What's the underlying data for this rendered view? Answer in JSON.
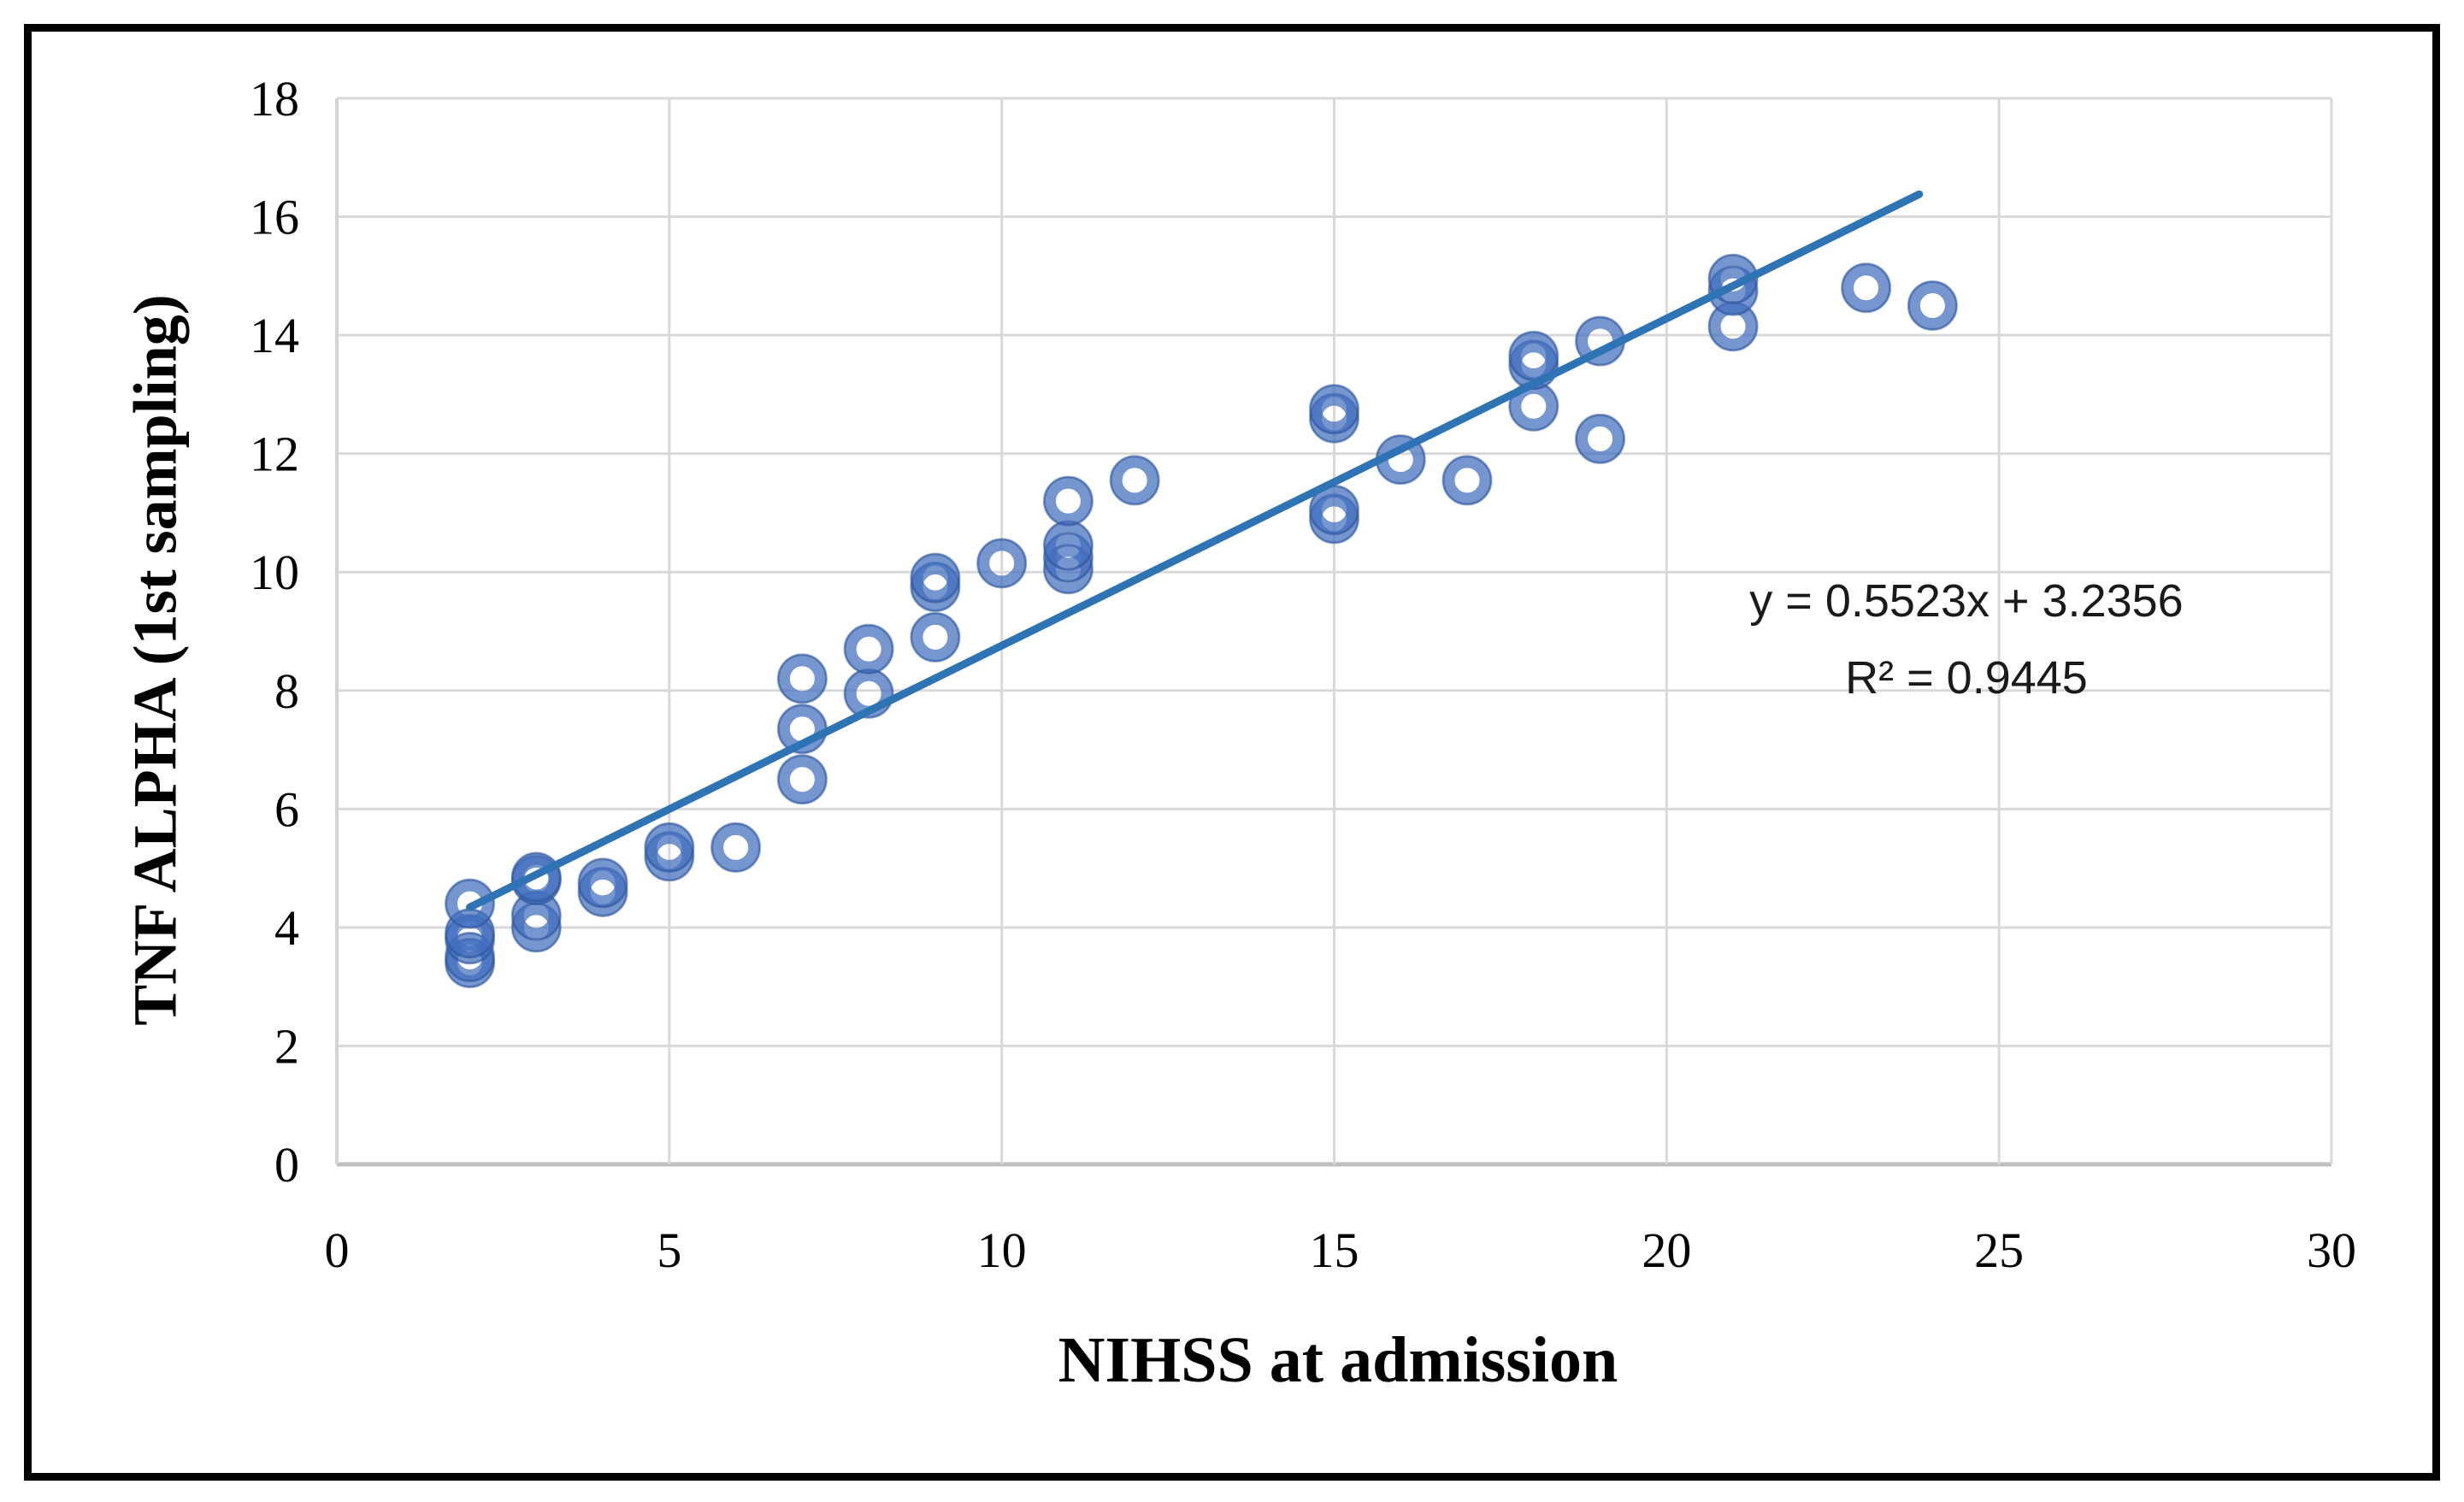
{
  "page": {
    "background": "#ffffff",
    "border_color": "#000000"
  },
  "chart_data": {
    "type": "scatter",
    "title": "",
    "xlabel": "NIHSS at admission",
    "ylabel": "TNF ALPHA (1st sampling)",
    "xlim": [
      0,
      30
    ],
    "ylim": [
      0,
      18
    ],
    "x_ticks": [
      0,
      5,
      10,
      15,
      20,
      25,
      30
    ],
    "y_ticks": [
      0,
      2,
      4,
      6,
      8,
      10,
      12,
      14,
      16,
      18
    ],
    "grid": true,
    "legend": "none",
    "points": [
      [
        2,
        3.4
      ],
      [
        2,
        3.5
      ],
      [
        2,
        3.8
      ],
      [
        2,
        3.9
      ],
      [
        2,
        4.4
      ],
      [
        3,
        4.0
      ],
      [
        3,
        4.2
      ],
      [
        3,
        4.8
      ],
      [
        3,
        4.85
      ],
      [
        4,
        4.6
      ],
      [
        4,
        4.75
      ],
      [
        5,
        5.2
      ],
      [
        5,
        5.35
      ],
      [
        6,
        5.35
      ],
      [
        7,
        6.5
      ],
      [
        7,
        7.35
      ],
      [
        7,
        8.2
      ],
      [
        8,
        7.95
      ],
      [
        8,
        8.7
      ],
      [
        9,
        8.9
      ],
      [
        9,
        9.75
      ],
      [
        9,
        9.9
      ],
      [
        10,
        10.15
      ],
      [
        11,
        10.05
      ],
      [
        11,
        10.25
      ],
      [
        11,
        10.45
      ],
      [
        11,
        11.2
      ],
      [
        12,
        11.55
      ],
      [
        15,
        10.9
      ],
      [
        15,
        11.05
      ],
      [
        15,
        12.6
      ],
      [
        15,
        12.75
      ],
      [
        16,
        11.9
      ],
      [
        17,
        11.55
      ],
      [
        18,
        12.8
      ],
      [
        18,
        13.5
      ],
      [
        18,
        13.65
      ],
      [
        19,
        12.25
      ],
      [
        19,
        13.9
      ],
      [
        21,
        14.15
      ],
      [
        21,
        14.75
      ],
      [
        21,
        14.95
      ],
      [
        23,
        14.8
      ],
      [
        24,
        14.5
      ]
    ],
    "trendline": {
      "slope": 0.5523,
      "intercept": 3.2356,
      "x_start": 2,
      "x_end": 23.8
    },
    "annotation": {
      "equation": "y = 0.5523x + 3.2356",
      "r_squared": "R² = 0.9445"
    },
    "colors": {
      "marker": "#4472C4",
      "marker_ring": "rgba(65,110,190,0.72)",
      "marker_edge": "rgba(40,80,150,0.5)",
      "trendline": "#2E74B5",
      "gridline": "#D9D9D9",
      "axis_line": "#BFBFBF",
      "tick_text": "#000000"
    }
  }
}
